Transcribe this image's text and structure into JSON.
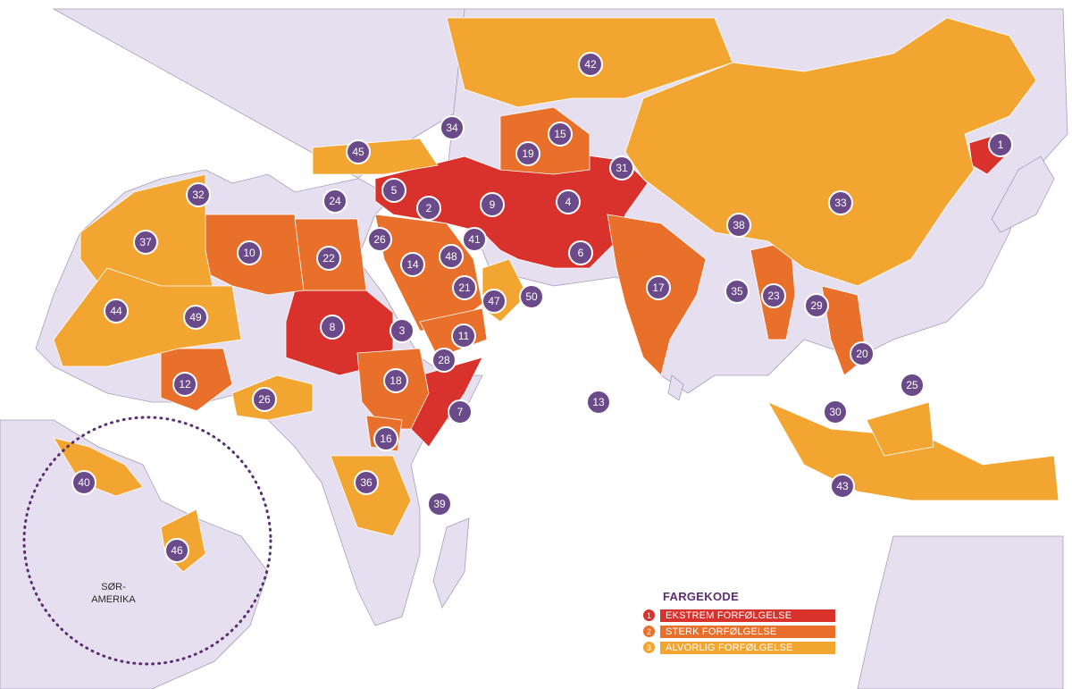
{
  "legend": {
    "title": "FARGEKODE",
    "items": [
      {
        "num": "1",
        "label": "EKSTREM FORFØLGELSE",
        "color": "#d9312b"
      },
      {
        "num": "2",
        "label": "STERK FORFØLGELSE",
        "color": "#e8702a"
      },
      {
        "num": "3",
        "label": "ALVORLIG FORFØLGELSE",
        "color": "#f2a531"
      }
    ]
  },
  "colors": {
    "ocean": "#ffffff",
    "land": "#e6dff0",
    "border": "#a89cb8",
    "marker": "#6b4a8a",
    "circle_dotted": "#5b2d72"
  },
  "region_label": "SØR-\nAMERIKA",
  "markers": [
    "1",
    "2",
    "3",
    "4",
    "5",
    "6",
    "7",
    "8",
    "9",
    "10",
    "11",
    "12",
    "13",
    "14",
    "15",
    "16",
    "17",
    "18",
    "19",
    "20",
    "21",
    "22",
    "23",
    "24",
    "25",
    "26",
    "26",
    "28",
    "29",
    "30",
    "31",
    "32",
    "33",
    "34",
    "35",
    "36",
    "37",
    "38",
    "39",
    "40",
    "41",
    "42",
    "43",
    "44",
    "45",
    "46",
    "47",
    "48",
    "49",
    "50"
  ]
}
